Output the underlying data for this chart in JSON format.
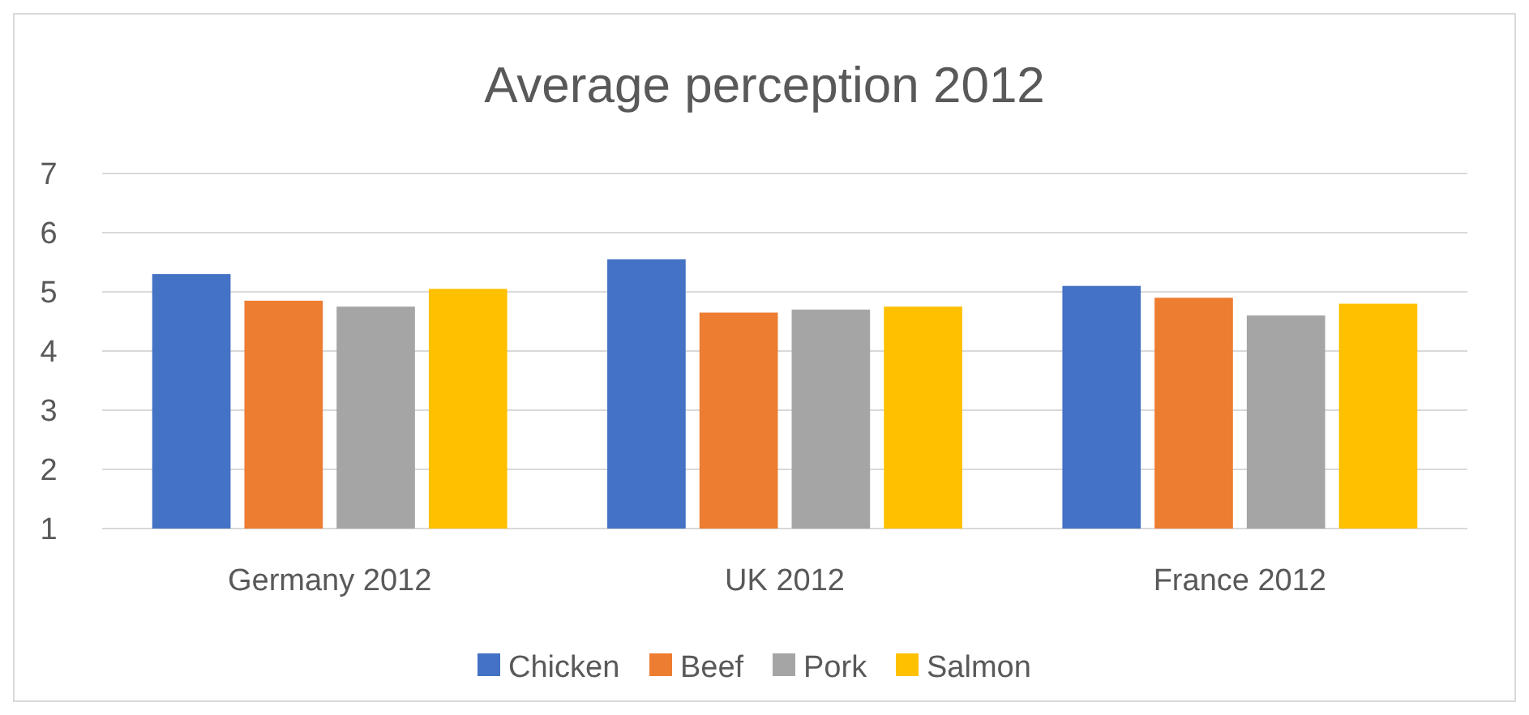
{
  "chart_data": {
    "type": "bar",
    "title": "Average perception 2012",
    "categories": [
      "Germany 2012",
      "UK 2012",
      "France 2012"
    ],
    "series": [
      {
        "name": "Chicken",
        "color": "#4472c4",
        "values": [
          5.3,
          5.55,
          5.1
        ]
      },
      {
        "name": "Beef",
        "color": "#ed7d31",
        "values": [
          4.85,
          4.65,
          4.9
        ]
      },
      {
        "name": "Pork",
        "color": "#a5a5a5",
        "values": [
          4.75,
          4.7,
          4.6
        ]
      },
      {
        "name": "Salmon",
        "color": "#ffc000",
        "values": [
          5.05,
          4.75,
          4.8
        ]
      }
    ],
    "ylim": [
      1,
      7
    ],
    "yticks": [
      1,
      2,
      3,
      4,
      5,
      6,
      7
    ],
    "grid": "y",
    "legend": "bottom"
  }
}
